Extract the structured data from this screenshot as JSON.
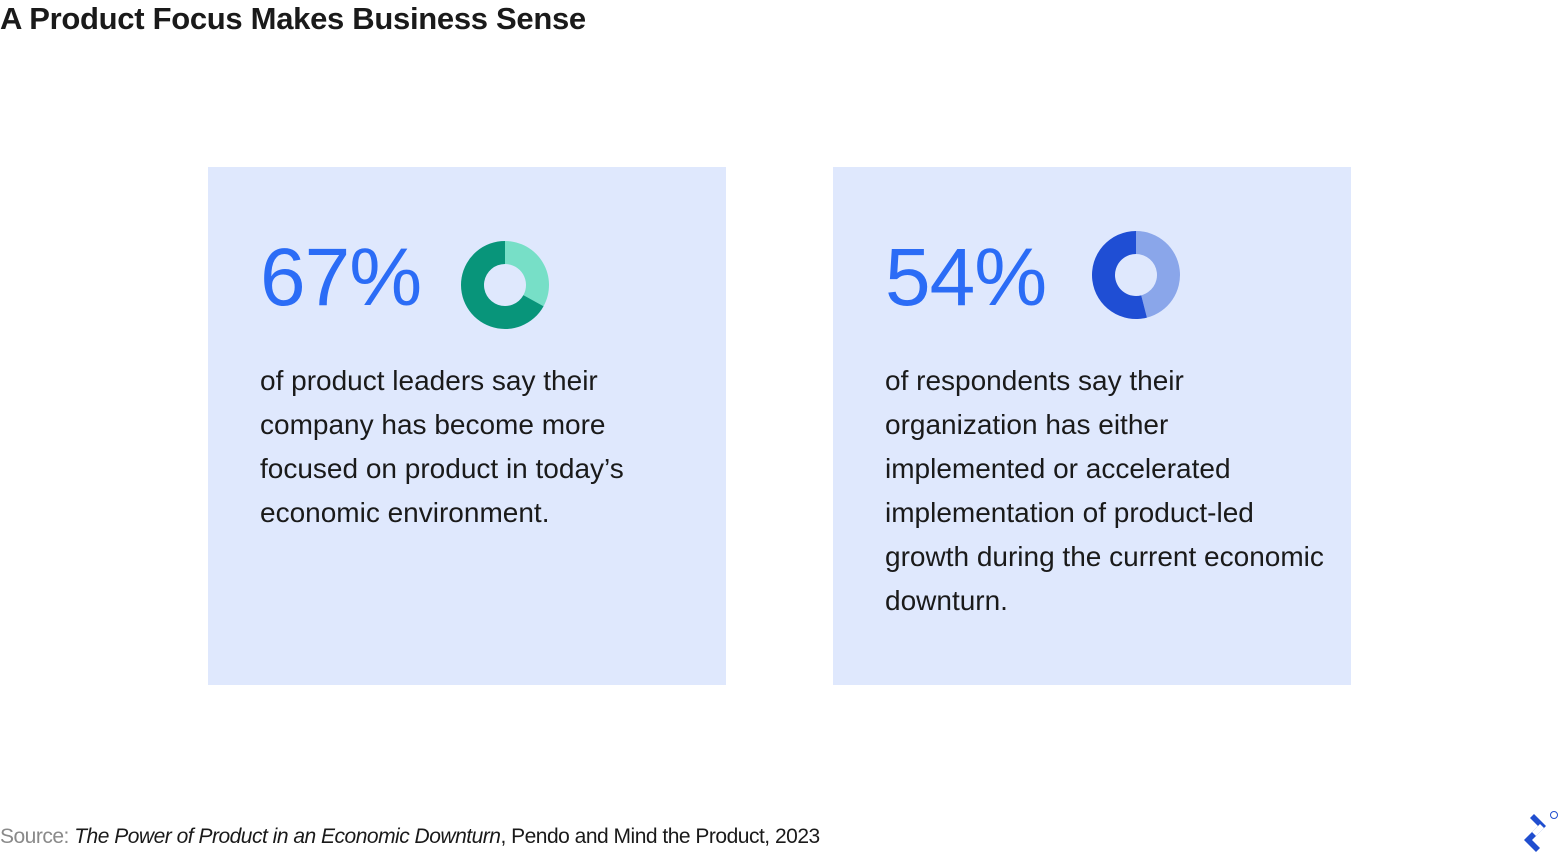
{
  "title": "A Product Focus Makes Business Sense",
  "chart_data": [
    {
      "type": "pie",
      "stat": "67%",
      "value": 67,
      "colors": {
        "value": "#08957a",
        "rest": "#77dfc7"
      },
      "description": "of product leaders say their company has become more focused on product in today’s economic environment."
    },
    {
      "type": "pie",
      "stat": "54%",
      "value": 54,
      "colors": {
        "value": "#1f4ed4",
        "rest": "#8aa6ea"
      },
      "description": "of respondents say their organization has either implemented or accelerated implementation of product-led growth during the current economic downturn."
    }
  ],
  "source": {
    "label": "Source:",
    "title": "The Power of Product in an Economic Downturn",
    "rest": ", Pendo and Mind the Product, 2023"
  },
  "logo": "toptal"
}
